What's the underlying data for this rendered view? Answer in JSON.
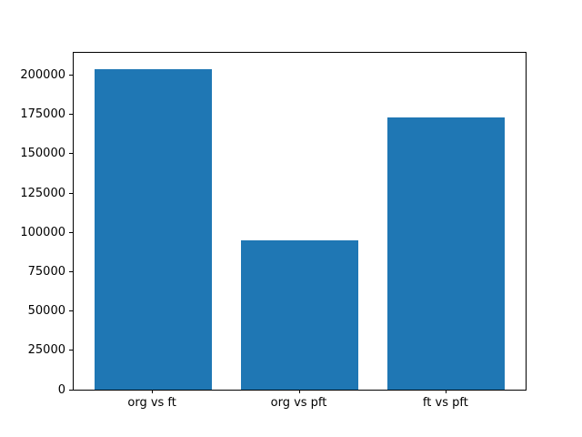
{
  "chart_data": {
    "type": "bar",
    "title": "",
    "xlabel": "",
    "ylabel": "",
    "categories": [
      "org vs ft",
      "org vs pft",
      "ft vs pft"
    ],
    "values": [
      204000,
      95000,
      173000
    ],
    "ylim": [
      0,
      214200
    ],
    "xlim": [
      -0.54,
      2.54
    ],
    "yticks": [
      0,
      25000,
      50000,
      75000,
      100000,
      125000,
      150000,
      175000,
      200000
    ],
    "bar_width_data_units": 0.8,
    "grid": false,
    "legend": null,
    "bar_color": "#1f77b4"
  },
  "colors": {
    "background": "#ffffff",
    "axis": "#000000",
    "tick_text": "#000000",
    "bar": "#1f77b4"
  }
}
